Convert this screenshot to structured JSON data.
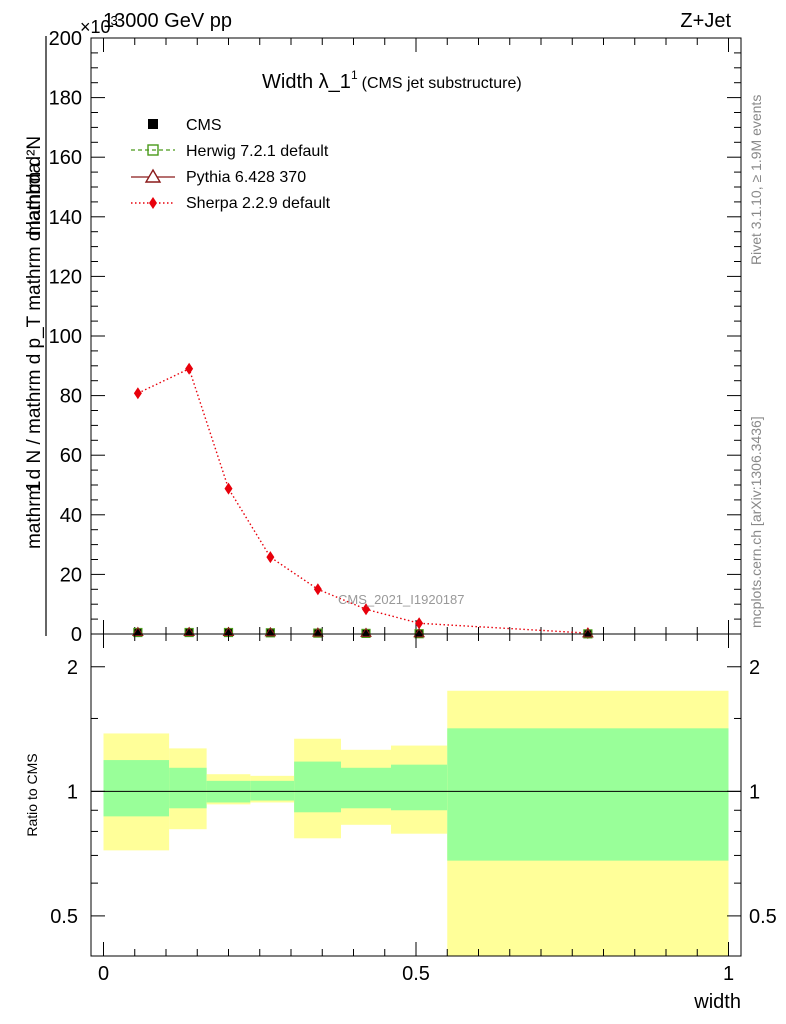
{
  "header": {
    "beam": "13000 GeV pp",
    "process": "Z+Jet",
    "exponent_prefix": "×10",
    "exponent_power": "3"
  },
  "title": {
    "main": "Width λ_1",
    "superscript": "1",
    "sub": "(CMS jet substructure)"
  },
  "side_labels": {
    "rivet": "Rivet 3.1.10, ≥ 1.9M events",
    "mcplots": "mcplots.cern.ch [arXiv:1306.3436]"
  },
  "analysis_tag": "CMS_2021_I1920187",
  "colors": {
    "herwig": "#4a9a1a",
    "pythia": "#8b1a1a",
    "sherpa": "#e8000b",
    "band_outer": "#ffff99",
    "band_inner": "#99ff99"
  },
  "chart_data": [
    {
      "type": "line",
      "panel": "main",
      "ylabel": "1 / mathrm d N / mathrm d p_T mathrm d N / mathrm d p_T mathrm d lambda",
      "ylabel_top": "mathrm d²N",
      "ylabel_bottom": "mathrm d N / mathrm d p_T mathrm d lambda",
      "ylabel_bottom_sub": "T",
      "ylabel_numerator_one": "1",
      "ylim": [
        0,
        200
      ],
      "yticks": [
        0,
        20,
        40,
        60,
        80,
        100,
        120,
        140,
        160,
        180,
        200
      ],
      "xlim": [
        -0.02,
        1.02
      ],
      "legend": [
        {
          "name": "CMS",
          "style": "black filled square"
        },
        {
          "name": "Herwig 7.2.1 default",
          "style": "green dashed open square"
        },
        {
          "name": "Pythia 6.428 370",
          "style": "dark red solid open triangle"
        },
        {
          "name": "Sherpa 2.2.9 default",
          "style": "red dotted diamond"
        }
      ],
      "series": [
        {
          "name": "Sherpa 2.2.9 default",
          "x": [
            0.055,
            0.137,
            0.2,
            0.267,
            0.343,
            0.42,
            0.505,
            0.775
          ],
          "values": [
            80.8,
            89.0,
            48.8,
            25.8,
            15.0,
            8.3,
            3.6,
            0.3
          ]
        },
        {
          "name": "CMS",
          "x": [
            0.055,
            0.137,
            0.2,
            0.267,
            0.343,
            0.42,
            0.505,
            0.775
          ],
          "values": [
            0.5,
            0.5,
            0.5,
            0.4,
            0.3,
            0.2,
            0.1,
            0.05
          ]
        },
        {
          "name": "Herwig 7.2.1 default",
          "x": [
            0.055,
            0.137,
            0.2,
            0.267,
            0.343,
            0.42,
            0.505,
            0.775
          ],
          "values": [
            0.5,
            0.5,
            0.5,
            0.4,
            0.3,
            0.2,
            0.1,
            0.05
          ]
        },
        {
          "name": "Pythia 6.428 370",
          "x": [
            0.055,
            0.137,
            0.2,
            0.267,
            0.343,
            0.42,
            0.505,
            0.775
          ],
          "values": [
            0.5,
            0.5,
            0.5,
            0.4,
            0.3,
            0.2,
            0.1,
            0.05
          ]
        }
      ]
    },
    {
      "type": "area",
      "panel": "ratio",
      "ylabel": "Ratio to CMS",
      "xlabel": "width",
      "xlim": [
        -0.02,
        1.02
      ],
      "ylim_log": [
        0.4,
        2.4
      ],
      "yticks": [
        0.5,
        1,
        2
      ],
      "ytick_labels": [
        "0.5",
        "1",
        "2"
      ],
      "xticks": [
        0,
        0.5,
        1
      ],
      "xtick_labels": [
        "0",
        "0.5",
        "1"
      ],
      "bins": [
        {
          "lo": 0.0,
          "hi": 0.105,
          "inner": [
            0.87,
            1.19
          ],
          "outer": [
            0.72,
            1.38
          ]
        },
        {
          "lo": 0.105,
          "hi": 0.165,
          "inner": [
            0.91,
            1.14
          ],
          "outer": [
            0.81,
            1.27
          ]
        },
        {
          "lo": 0.165,
          "hi": 0.235,
          "inner": [
            0.94,
            1.06
          ],
          "outer": [
            0.93,
            1.1
          ]
        },
        {
          "lo": 0.235,
          "hi": 0.305,
          "inner": [
            0.95,
            1.06
          ],
          "outer": [
            0.94,
            1.09
          ]
        },
        {
          "lo": 0.305,
          "hi": 0.38,
          "inner": [
            0.89,
            1.18
          ],
          "outer": [
            0.77,
            1.34
          ]
        },
        {
          "lo": 0.38,
          "hi": 0.46,
          "inner": [
            0.91,
            1.14
          ],
          "outer": [
            0.83,
            1.26
          ]
        },
        {
          "lo": 0.46,
          "hi": 0.55,
          "inner": [
            0.9,
            1.16
          ],
          "outer": [
            0.79,
            1.29
          ]
        },
        {
          "lo": 0.55,
          "hi": 1.0,
          "inner": [
            0.68,
            1.42
          ],
          "outer": [
            0.4,
            1.75
          ]
        }
      ],
      "reference_line": 1
    }
  ]
}
